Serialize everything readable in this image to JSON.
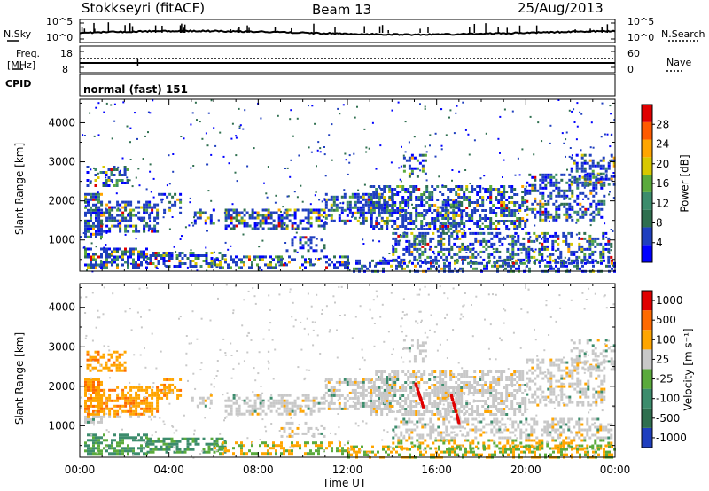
{
  "header": {
    "station": "Stokkseyri (fitACF)",
    "beam": "Beam 13",
    "date": "25/Aug/2013"
  },
  "noise_panel": {
    "left_label": "N.Sky",
    "right_label": "N.Search",
    "left_ticks": [
      "10^5",
      "10^0"
    ],
    "right_ticks": [
      "10^5",
      "10^0"
    ]
  },
  "freq_panel": {
    "left_label_line1": "Freq.",
    "left_label_line2": "[MHz]",
    "right_label": "Nave",
    "left_ticks": [
      "18",
      "8"
    ],
    "right_ticks": [
      "60",
      "0"
    ]
  },
  "cpid": {
    "label": "CPID",
    "value": "normal (fast) 151"
  },
  "colors": {
    "power_scale": [
      "#0000ff",
      "#1f3fbf",
      "#2f6f4f",
      "#3c8c6c",
      "#5aaa3c",
      "#d8c800",
      "#ffa500",
      "#ff5a00",
      "#e00000"
    ],
    "velocity_scale": [
      "#1f3fbf",
      "#2f6f4f",
      "#3c8c6c",
      "#5aaa3c",
      "#c8c8c8",
      "#ffa500",
      "#ff6a00",
      "#e00000"
    ]
  },
  "chart_data": [
    {
      "type": "heatmap",
      "name": "power",
      "ylabel": "Slant Range [km]",
      "yticks": [
        1000,
        2000,
        3000,
        4000
      ],
      "ylim": [
        200,
        4600
      ],
      "xlim_hours": [
        0,
        24
      ],
      "colorbar_label": "Power [dB]",
      "colorbar_ticks": [
        "4",
        "8",
        "12",
        "16",
        "20",
        "24",
        "28"
      ],
      "colorbar_range": [
        0,
        30
      ]
    },
    {
      "type": "heatmap",
      "name": "velocity",
      "ylabel": "Slant Range [km]",
      "yticks": [
        1000,
        2000,
        3000,
        4000
      ],
      "ylim": [
        200,
        4600
      ],
      "xlim_hours": [
        0,
        24
      ],
      "colorbar_label": "Velocity [m s⁻¹]",
      "colorbar_ticks": [
        "1000",
        "500",
        "100",
        "25",
        "-25",
        "-100",
        "-500",
        "-1000"
      ]
    }
  ],
  "x_axis": {
    "label": "Time UT",
    "ticks": [
      "00:00",
      "04:00",
      "08:00",
      "12:00",
      "16:00",
      "20:00",
      "00:00"
    ]
  }
}
